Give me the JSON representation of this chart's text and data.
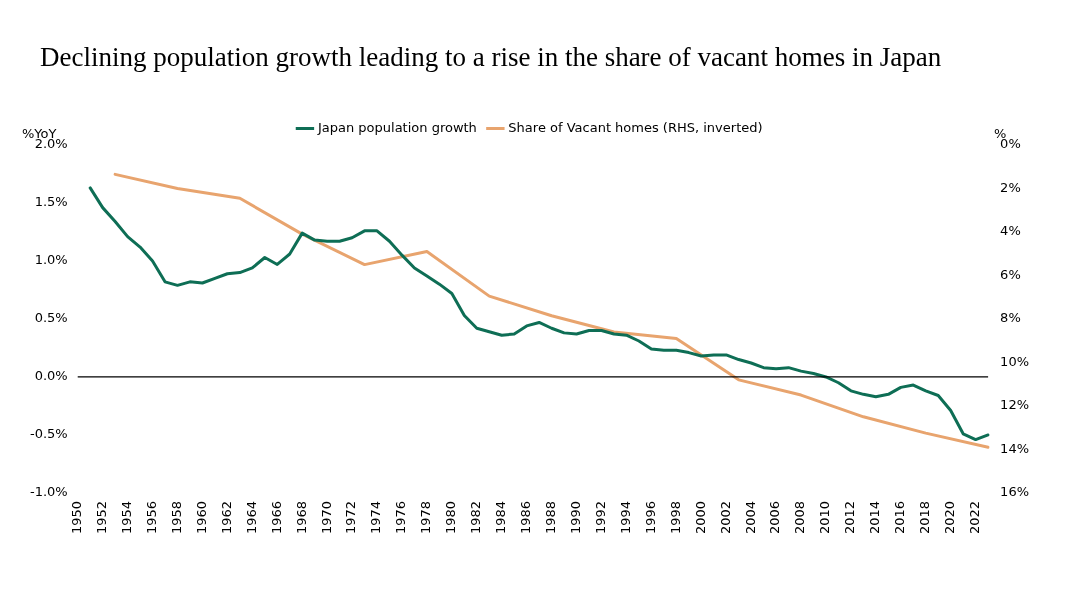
{
  "chart_data": {
    "type": "line",
    "title": "Declining population growth leading to a rise in the share of vacant homes in Japan",
    "ylabel": "%YoY",
    "y2label": "%",
    "categories": [
      "1950",
      null,
      "1952",
      null,
      "1954",
      null,
      "1956",
      null,
      "1958",
      null,
      "1960",
      null,
      "1962",
      null,
      "1964",
      null,
      "1966",
      null,
      "1968",
      null,
      "1970",
      null,
      "1972",
      null,
      "1974",
      null,
      "1976",
      null,
      "1978",
      null,
      "1980",
      null,
      "1982",
      null,
      "1984",
      null,
      "1986",
      null,
      "1988",
      null,
      "1990",
      null,
      "1992",
      null,
      "1994",
      null,
      "1996",
      null,
      "1998",
      null,
      "2000",
      null,
      "2002",
      null,
      "2004",
      null,
      "2006",
      null,
      "2008",
      null,
      "2010",
      null,
      "2012",
      null,
      "2014",
      null,
      "2016",
      null,
      "2018",
      null,
      "2020",
      null,
      "2022",
      null
    ],
    "series": [
      {
        "name": "Japan population growth",
        "color": "#0e6e55",
        "values": [
          null,
          1.63,
          1.46,
          1.34,
          1.21,
          1.12,
          1.0,
          0.82,
          0.79,
          0.82,
          0.81,
          0.85,
          0.89,
          0.9,
          0.94,
          1.03,
          0.97,
          1.06,
          1.24,
          1.18,
          1.17,
          1.17,
          1.2,
          1.26,
          1.26,
          1.17,
          1.05,
          0.94,
          0.87,
          0.8,
          0.72,
          0.53,
          0.42,
          0.39,
          0.36,
          0.37,
          0.44,
          0.47,
          0.42,
          0.38,
          0.37,
          0.4,
          0.4,
          0.37,
          0.36,
          0.31,
          0.24,
          0.23,
          0.23,
          0.21,
          0.18,
          0.19,
          0.19,
          0.15,
          0.12,
          0.08,
          0.07,
          0.08,
          0.05,
          0.03,
          0.0,
          -0.05,
          -0.12,
          -0.15,
          -0.17,
          -0.15,
          -0.09,
          -0.07,
          -0.12,
          -0.16,
          -0.29,
          -0.49,
          -0.54,
          -0.5
        ]
      },
      {
        "name": "Share of Vacant homes (RHS, inverted)",
        "color": "#e8a46e",
        "axis": "y2",
        "values": [
          null,
          null,
          null,
          1.35,
          null,
          null,
          null,
          null,
          2.0,
          null,
          null,
          null,
          null,
          2.45,
          null,
          null,
          null,
          null,
          4.1,
          null,
          null,
          null,
          null,
          5.5,
          null,
          null,
          null,
          null,
          4.9,
          null,
          null,
          null,
          null,
          6.95,
          null,
          null,
          null,
          null,
          7.85,
          null,
          null,
          null,
          null,
          8.6,
          null,
          null,
          null,
          null,
          8.9,
          null,
          null,
          null,
          null,
          10.8,
          null,
          null,
          null,
          null,
          11.5,
          null,
          null,
          null,
          null,
          12.5,
          null,
          null,
          null,
          null,
          13.25,
          null,
          null,
          null,
          null,
          13.9
        ]
      }
    ],
    "ylim": [
      -1.0,
      2.0
    ],
    "yticks": [
      {
        "value": -1.0,
        "label": "-1.0%"
      },
      {
        "value": -0.5,
        "label": "-0.5%"
      },
      {
        "value": 0,
        "label": "0.0%"
      },
      {
        "value": 0.5,
        "label": "0.5%"
      },
      {
        "value": 1.0,
        "label": "1.0%"
      },
      {
        "value": 1.5,
        "label": "1.5%"
      },
      {
        "value": 2.0,
        "label": "2.0%"
      }
    ],
    "y2lim": [
      16,
      0
    ],
    "y2ticks": [
      {
        "value": 0,
        "label": "0%"
      },
      {
        "value": 2,
        "label": "2%"
      },
      {
        "value": 4,
        "label": "4%"
      },
      {
        "value": 6,
        "label": "6%"
      },
      {
        "value": 8,
        "label": "8%"
      },
      {
        "value": 10,
        "label": "10%"
      },
      {
        "value": 12,
        "label": "12%"
      },
      {
        "value": 14,
        "label": "14%"
      },
      {
        "value": 16,
        "label": "16%"
      }
    ],
    "ref_lines": [
      {
        "axis": "y",
        "value": 0,
        "color": "#000000"
      }
    ],
    "legend": "top",
    "grid": false,
    "marker": "none",
    "line_style": "solid"
  }
}
